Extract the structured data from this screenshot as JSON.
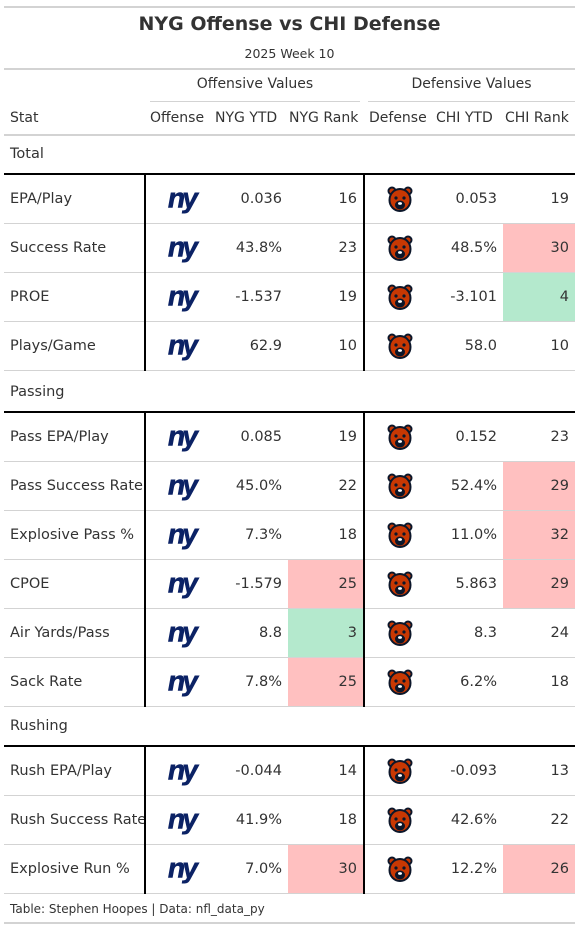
{
  "title": "NYG Offense vs CHI Defense",
  "subtitle": "2025 Week 10",
  "spanners": {
    "offense": "Offensive Values",
    "defense": "Defensive Values"
  },
  "columns": {
    "stat": "Stat",
    "offense": "Offense",
    "nyg_ytd": "NYG YTD",
    "nyg_rank": "NYG Rank",
    "defense": "Defense",
    "chi_ytd": "CHI YTD",
    "chi_rank": "CHI Rank"
  },
  "logos": {
    "offense_icon": "nyg-logo",
    "defense_icon": "chi-bear-logo",
    "nyg_text": "ny",
    "colors": {
      "nyg_blue": "#0b2265",
      "bears_orange": "#c83803",
      "bears_navy": "#0b162a",
      "bad": "#ffc0c0",
      "good": "#b4e9cd"
    }
  },
  "groups": [
    {
      "name": "Total",
      "rows": [
        {
          "stat": "EPA/Play",
          "nyg_ytd": "0.036",
          "nyg_rank": "16",
          "chi_ytd": "0.053",
          "chi_rank": "19"
        },
        {
          "stat": "Success Rate",
          "nyg_ytd": "43.8%",
          "nyg_rank": "23",
          "chi_ytd": "48.5%",
          "chi_rank": "30"
        },
        {
          "stat": "PROE",
          "nyg_ytd": "-1.537",
          "nyg_rank": "19",
          "chi_ytd": "-3.101",
          "chi_rank": "4"
        },
        {
          "stat": "Plays/Game",
          "nyg_ytd": "62.9",
          "nyg_rank": "10",
          "chi_ytd": "58.0",
          "chi_rank": "10"
        }
      ]
    },
    {
      "name": "Passing",
      "rows": [
        {
          "stat": "Pass EPA/Play",
          "nyg_ytd": "0.085",
          "nyg_rank": "19",
          "chi_ytd": "0.152",
          "chi_rank": "23"
        },
        {
          "stat": "Pass Success Rate",
          "nyg_ytd": "45.0%",
          "nyg_rank": "22",
          "chi_ytd": "52.4%",
          "chi_rank": "29"
        },
        {
          "stat": "Explosive Pass %",
          "nyg_ytd": "7.3%",
          "nyg_rank": "18",
          "chi_ytd": "11.0%",
          "chi_rank": "32"
        },
        {
          "stat": "CPOE",
          "nyg_ytd": "-1.579",
          "nyg_rank": "25",
          "chi_ytd": "5.863",
          "chi_rank": "29"
        },
        {
          "stat": "Air Yards/Pass",
          "nyg_ytd": "8.8",
          "nyg_rank": "3",
          "chi_ytd": "8.3",
          "chi_rank": "24"
        },
        {
          "stat": "Sack Rate",
          "nyg_ytd": "7.8%",
          "nyg_rank": "25",
          "chi_ytd": "6.2%",
          "chi_rank": "18"
        }
      ]
    },
    {
      "name": "Rushing",
      "rows": [
        {
          "stat": "Rush EPA/Play",
          "nyg_ytd": "-0.044",
          "nyg_rank": "14",
          "chi_ytd": "-0.093",
          "chi_rank": "13"
        },
        {
          "stat": "Rush Success Rate",
          "nyg_ytd": "41.9%",
          "nyg_rank": "18",
          "chi_ytd": "42.6%",
          "chi_rank": "22"
        },
        {
          "stat": "Explosive Run %",
          "nyg_ytd": "7.0%",
          "nyg_rank": "30",
          "chi_ytd": "12.2%",
          "chi_rank": "26"
        }
      ]
    }
  ],
  "source_note": "Table: Stephen Hoopes | Data: nfl_data_py"
}
